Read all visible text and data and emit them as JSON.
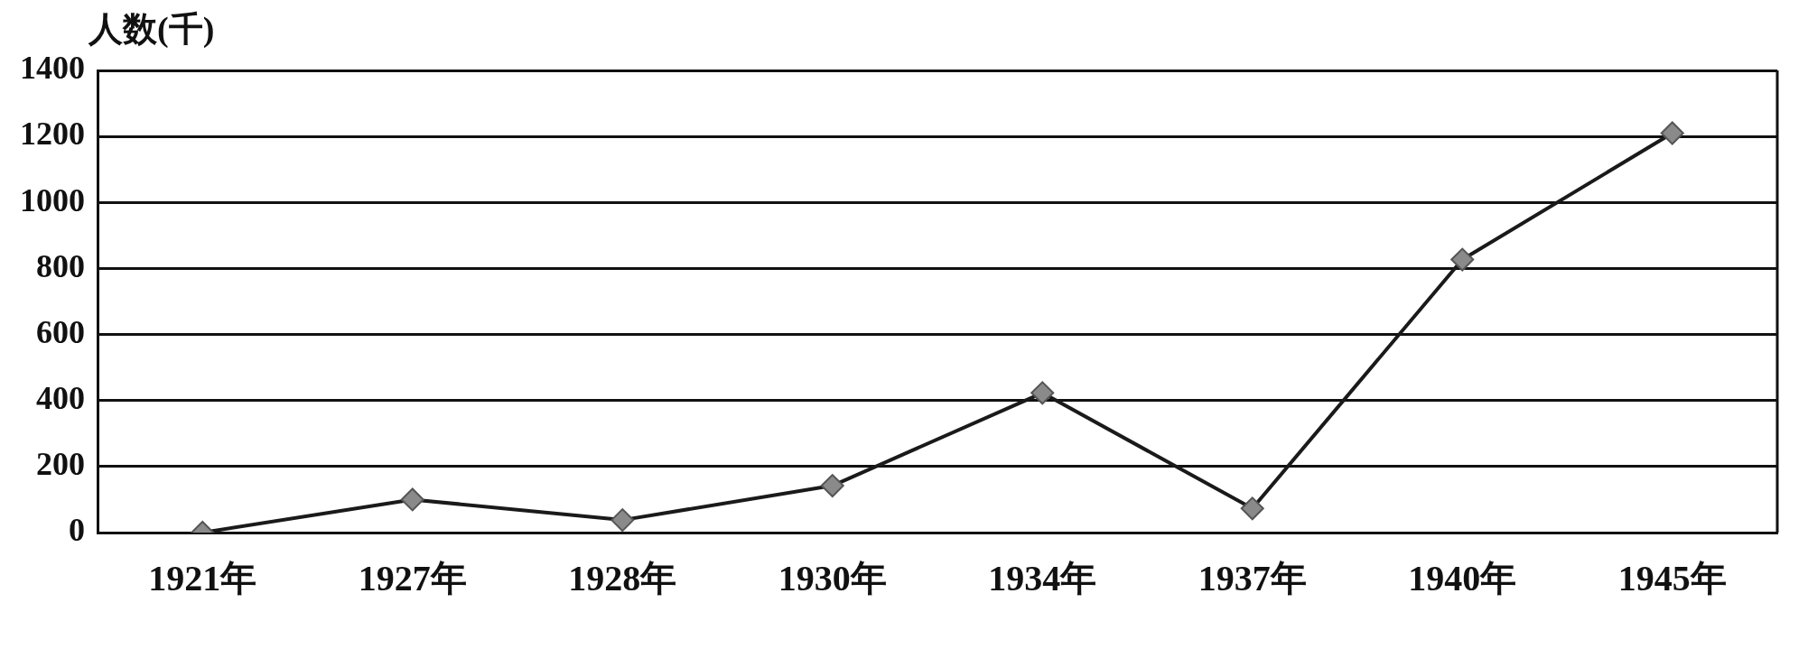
{
  "chart_data": {
    "type": "line",
    "ylabel": "人数(千)",
    "categories": [
      "1921年",
      "1927年",
      "1928年",
      "1930年",
      "1934年",
      "1937年",
      "1940年",
      "1945年"
    ],
    "series": [
      {
        "color": "#1a1a1a",
        "values": [
          0,
          100,
          38,
          142,
          423,
          73,
          827,
          1210
        ]
      }
    ],
    "ylim": [
      0,
      1400
    ],
    "yticks": [
      0,
      200,
      400,
      600,
      800,
      1000,
      1200,
      1400
    ],
    "grid": "y",
    "legend": false,
    "marker": "diamond",
    "line_style": "solid"
  }
}
